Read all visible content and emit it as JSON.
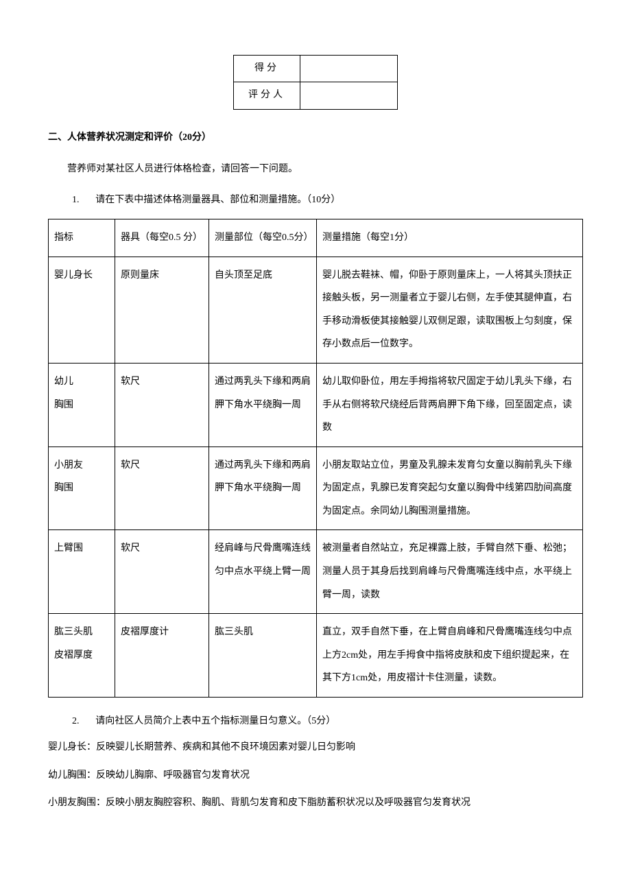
{
  "scoreBox": {
    "scoreLabel": "得分",
    "scoreValue": "",
    "graderLabel": "评分人",
    "graderValue": ""
  },
  "section": {
    "title": "二、人体营养状况测定和评价（20分）",
    "intro": "营养师对某社区人员进行体格检查，请回答一下问题。"
  },
  "q1": {
    "number": "1.",
    "text": "请在下表中描述体格测量器具、部位和测量措施。（10分）"
  },
  "table1": {
    "headers": {
      "indicator": "指标",
      "tool": "器具（每空0.5 分）",
      "part": "测量部位（每空0.5分）",
      "method": "测量措施（每空1分）"
    },
    "rows": [
      {
        "indicator": "婴儿身长",
        "tool": "原则量床",
        "part": "自头顶至足底",
        "method": "婴儿脱去鞋袜、帽，仰卧于原则量床上，一人将其头顶扶正 接触头板，另一测量者立于婴儿右侧，左手使其腿伸直，右 手移动滑板使其接触婴儿双侧足跟，读取围板上匀刻度，保 存小数点后一位数字。"
      },
      {
        "indicator": "幼儿\n胸围",
        "tool": "软尺",
        "part": "通过两乳头下缘和两肩胛下角水平绕胸一周",
        "method": "幼儿取仰卧位，用左手拇指将软尺固定于幼儿乳头下缘，右 手从右侧将软尺绕经后背两肩胛下角下缘，回至固定点，读 数"
      },
      {
        "indicator": "小朋友\n胸围",
        "tool": "软尺",
        "part": "通过两乳头下缘和两肩胛下角水平绕胸一周",
        "method": "小朋友取站立位，男童及乳腺未发育匀女童以胸前乳头下缘 为固定点，乳腺已发育突起匀女童以胸骨中线第四肋间高度 为固定点。余同幼儿胸围测量措施。"
      },
      {
        "indicator": "上臂围",
        "tool": "软尺",
        "part": "经肩峰与尺骨鹰嘴连线匀中点水平绕上臂一周",
        "method": "被测量者自然站立，充足裸露上肢，手臂自然下垂、松弛；测量人员于其身后找到肩峰与尺骨鹰嘴连线中点，水平绕上臂一周，读数"
      },
      {
        "indicator": "肱三头肌\n皮褶厚度",
        "tool": "皮褶厚度计",
        "part": "肱三头肌",
        "method": "直立，双手自然下垂，在上臂自肩峰和尺骨鹰嘴连线匀中点上方2cm处，用左手拇食中指将皮肤和皮下组织提起来，在其下方1cm处，用皮褶计卡住测量，读数。"
      }
    ]
  },
  "q2": {
    "number": "2.",
    "text": "请向社区人员简介上表中五个指标测量日匀意义。（5分）"
  },
  "answers": [
    "婴儿身长：反映婴儿长期营养、疾病和其他不良环境因素对婴儿日匀影响",
    "幼儿胸围：反映幼儿胸廓、呼吸器官匀发育状况",
    "小朋友胸围：反映小朋友胸腔容积、胸肌、背肌匀发育和皮下脂肪蓄积状况以及呼吸器官匀发育状况"
  ]
}
